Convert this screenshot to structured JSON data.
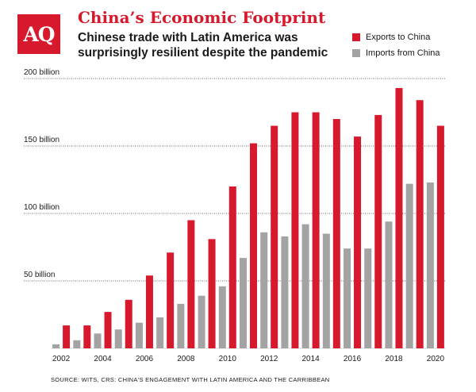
{
  "logo": {
    "text": "AQ"
  },
  "title": "China’s Economic Footprint",
  "subtitle": "Chinese trade with Latin America was surprisingly resilient despite the pandemic",
  "source": "SOURCE: WITS, CRS: CHINA'S ENGAGEMENT WITH LATIN AMERICA AND THE CARRIBBEAN",
  "colors": {
    "exports": "#d7192d",
    "imports": "#a3a3a3",
    "accent": "#d7192d"
  },
  "chart_data": {
    "type": "bar",
    "categories": [
      "2002",
      "2003",
      "2004",
      "2005",
      "2006",
      "2007",
      "2008",
      "2009",
      "2010",
      "2011",
      "2012",
      "2013",
      "2014",
      "2015",
      "2016",
      "2017",
      "2018",
      "2019",
      "2020"
    ],
    "x_tick_labels": [
      "2002",
      "2004",
      "2006",
      "2008",
      "2010",
      "2012",
      "2014",
      "2016",
      "2018",
      "2020"
    ],
    "series": [
      {
        "name": "Exports to China",
        "color": "#d7192d",
        "values": [
          17,
          17,
          27,
          36,
          54,
          71,
          95,
          81,
          120,
          152,
          165,
          175,
          175,
          170,
          157,
          173,
          193,
          184,
          165
        ]
      },
      {
        "name": "Imports from China",
        "color": "#a3a3a3",
        "values": [
          3,
          6,
          11,
          14,
          19,
          23,
          33,
          39,
          46,
          67,
          86,
          83,
          92,
          85,
          74,
          74,
          94,
          122,
          123
        ]
      }
    ],
    "y_ticks": [
      50,
      100,
      150,
      200
    ],
    "y_tick_labels": [
      "50 billion",
      "100 billion",
      "150 billion",
      "200 billion"
    ],
    "ylim": [
      0,
      200
    ],
    "grid": true,
    "legend_position": "top-right",
    "xlabel": "",
    "ylabel": ""
  }
}
